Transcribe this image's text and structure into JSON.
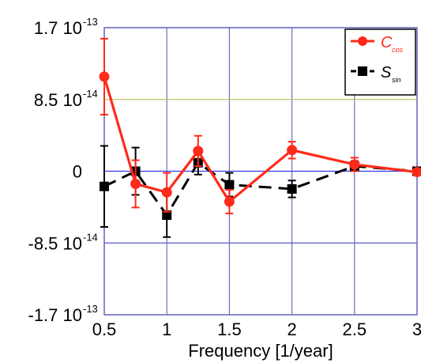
{
  "chart_data": {
    "type": "line",
    "xlabel": "Frequency [1/year]",
    "ylabel": "",
    "xlim": [
      0.5,
      3
    ],
    "ylim": [
      -1.7e-13,
      1.7e-13
    ],
    "grid": true,
    "legend": "top-right",
    "x_ticks": [
      {
        "value": 0.5,
        "label": "0.5"
      },
      {
        "value": 1,
        "label": "1"
      },
      {
        "value": 1.5,
        "label": "1.5"
      },
      {
        "value": 2,
        "label": "2"
      },
      {
        "value": 2.5,
        "label": "2.5"
      },
      {
        "value": 3,
        "label": "3"
      }
    ],
    "y_ticks": [
      {
        "value": 1.7e-13,
        "mantissa": "1.7 10",
        "exponent": "-13"
      },
      {
        "value": 8.5e-14,
        "mantissa": "8.5 10",
        "exponent": "-14"
      },
      {
        "value": 0,
        "mantissa": "0",
        "exponent": ""
      },
      {
        "value": -8.5e-14,
        "mantissa": "-8.5 10",
        "exponent": "-14"
      },
      {
        "value": -1.7e-13,
        "mantissa": "-1.7 10",
        "exponent": "-13"
      }
    ],
    "series": [
      {
        "name": "C",
        "subscript": "cos",
        "color": "#ff2a1a",
        "line_style": "solid",
        "marker": "circle",
        "x": [
          0.5,
          0.75,
          1.0,
          1.25,
          1.5,
          2.0,
          2.5,
          3.0
        ],
        "y": [
          1.12e-13,
          -1.5e-14,
          -2.5e-14,
          2.4e-14,
          -3.6e-14,
          2.5e-14,
          8e-15,
          -1e-15
        ],
        "err": [
          4.5e-14,
          2.8e-14,
          2.3e-14,
          1.8e-14,
          1.4e-14,
          1e-14,
          8e-15,
          3e-15
        ]
      },
      {
        "name": "S",
        "subscript": "sin",
        "color": "#000000",
        "line_style": "dashed",
        "marker": "square",
        "x": [
          0.5,
          0.75,
          1.0,
          1.25,
          1.5,
          2.0,
          2.5,
          3.0
        ],
        "y": [
          -1.8e-14,
          0,
          -5.2e-14,
          1e-14,
          -1.6e-14,
          -2.1e-14,
          6e-15,
          0
        ],
        "err": [
          4.8e-14,
          2.8e-14,
          2.6e-14,
          1.4e-14,
          1.4e-14,
          1e-14,
          6e-15,
          3e-15
        ]
      }
    ]
  }
}
